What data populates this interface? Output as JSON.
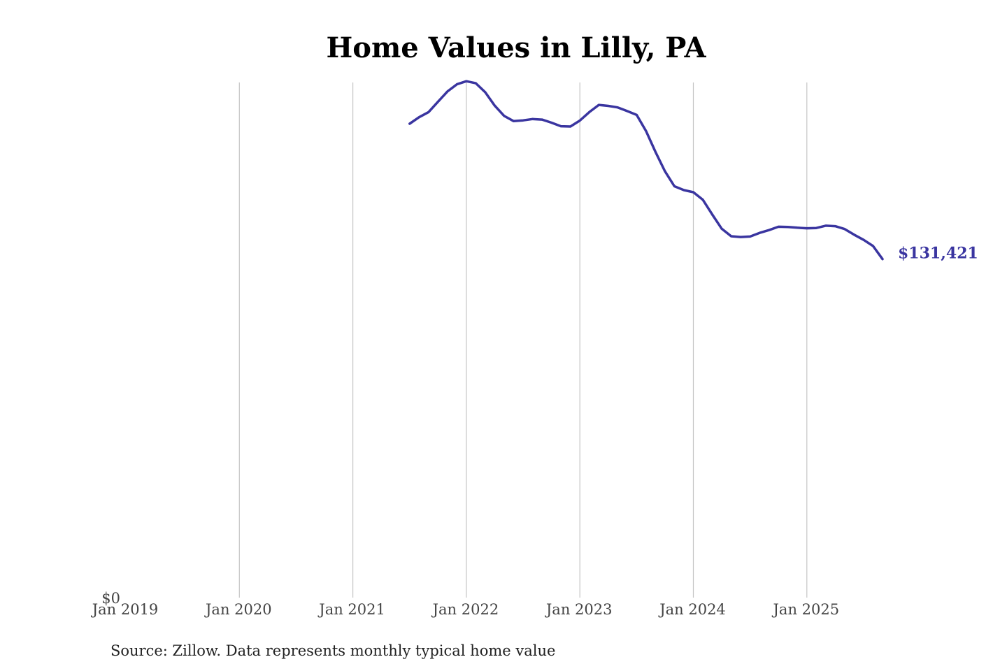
{
  "chart_data": {
    "type": "line",
    "title": "Home Values in Lilly, PA",
    "source": "Source: Zillow. Data represents monthly typical home value",
    "x_tick_labels": [
      "Jan 2019",
      "Jan 2020",
      "Jan 2021",
      "Jan 2022",
      "Jan 2023",
      "Jan 2024",
      "Jan 2025"
    ],
    "x_tick_dates": [
      "2019-01",
      "2020-01",
      "2021-01",
      "2022-01",
      "2023-01",
      "2024-01",
      "2025-01"
    ],
    "xlim": [
      "2019-01",
      "2025-09"
    ],
    "y_tick_labels": [
      "$0"
    ],
    "y_tick_values": [
      0
    ],
    "ylim": [
      0,
      200000
    ],
    "grid": "vertical",
    "line_color": "#3a35a0",
    "end_label": "$131,421",
    "series": [
      {
        "x": [
          "2021-07",
          "2021-08",
          "2021-09",
          "2021-10",
          "2021-11",
          "2021-12",
          "2022-01",
          "2022-02",
          "2022-03",
          "2022-04",
          "2022-05",
          "2022-06",
          "2022-07",
          "2022-08",
          "2022-09",
          "2022-10",
          "2022-11",
          "2022-12",
          "2023-01",
          "2023-02",
          "2023-03",
          "2023-04",
          "2023-05",
          "2023-06",
          "2023-07",
          "2023-08",
          "2023-09",
          "2023-10",
          "2023-11",
          "2023-12",
          "2024-01",
          "2024-02",
          "2024-03",
          "2024-04",
          "2024-05",
          "2024-06",
          "2024-07",
          "2024-08",
          "2024-09",
          "2024-10",
          "2024-11",
          "2024-12",
          "2025-01",
          "2025-02",
          "2025-03",
          "2025-04",
          "2025-05",
          "2025-06",
          "2025-07",
          "2025-08",
          "2025-09"
        ],
        "y": [
          184000,
          186500,
          188500,
          192500,
          196500,
          199300,
          200500,
          199700,
          196200,
          191000,
          187000,
          185000,
          185300,
          185800,
          185600,
          184400,
          183000,
          182900,
          185200,
          188500,
          191300,
          190900,
          190300,
          188900,
          187400,
          181100,
          173000,
          165500,
          159700,
          158200,
          157400,
          154500,
          148700,
          143200,
          140300,
          140000,
          140200,
          141600,
          142700,
          144000,
          143900,
          143600,
          143400,
          143500,
          144400,
          144200,
          143100,
          140900,
          138900,
          136500,
          131421
        ]
      }
    ]
  }
}
